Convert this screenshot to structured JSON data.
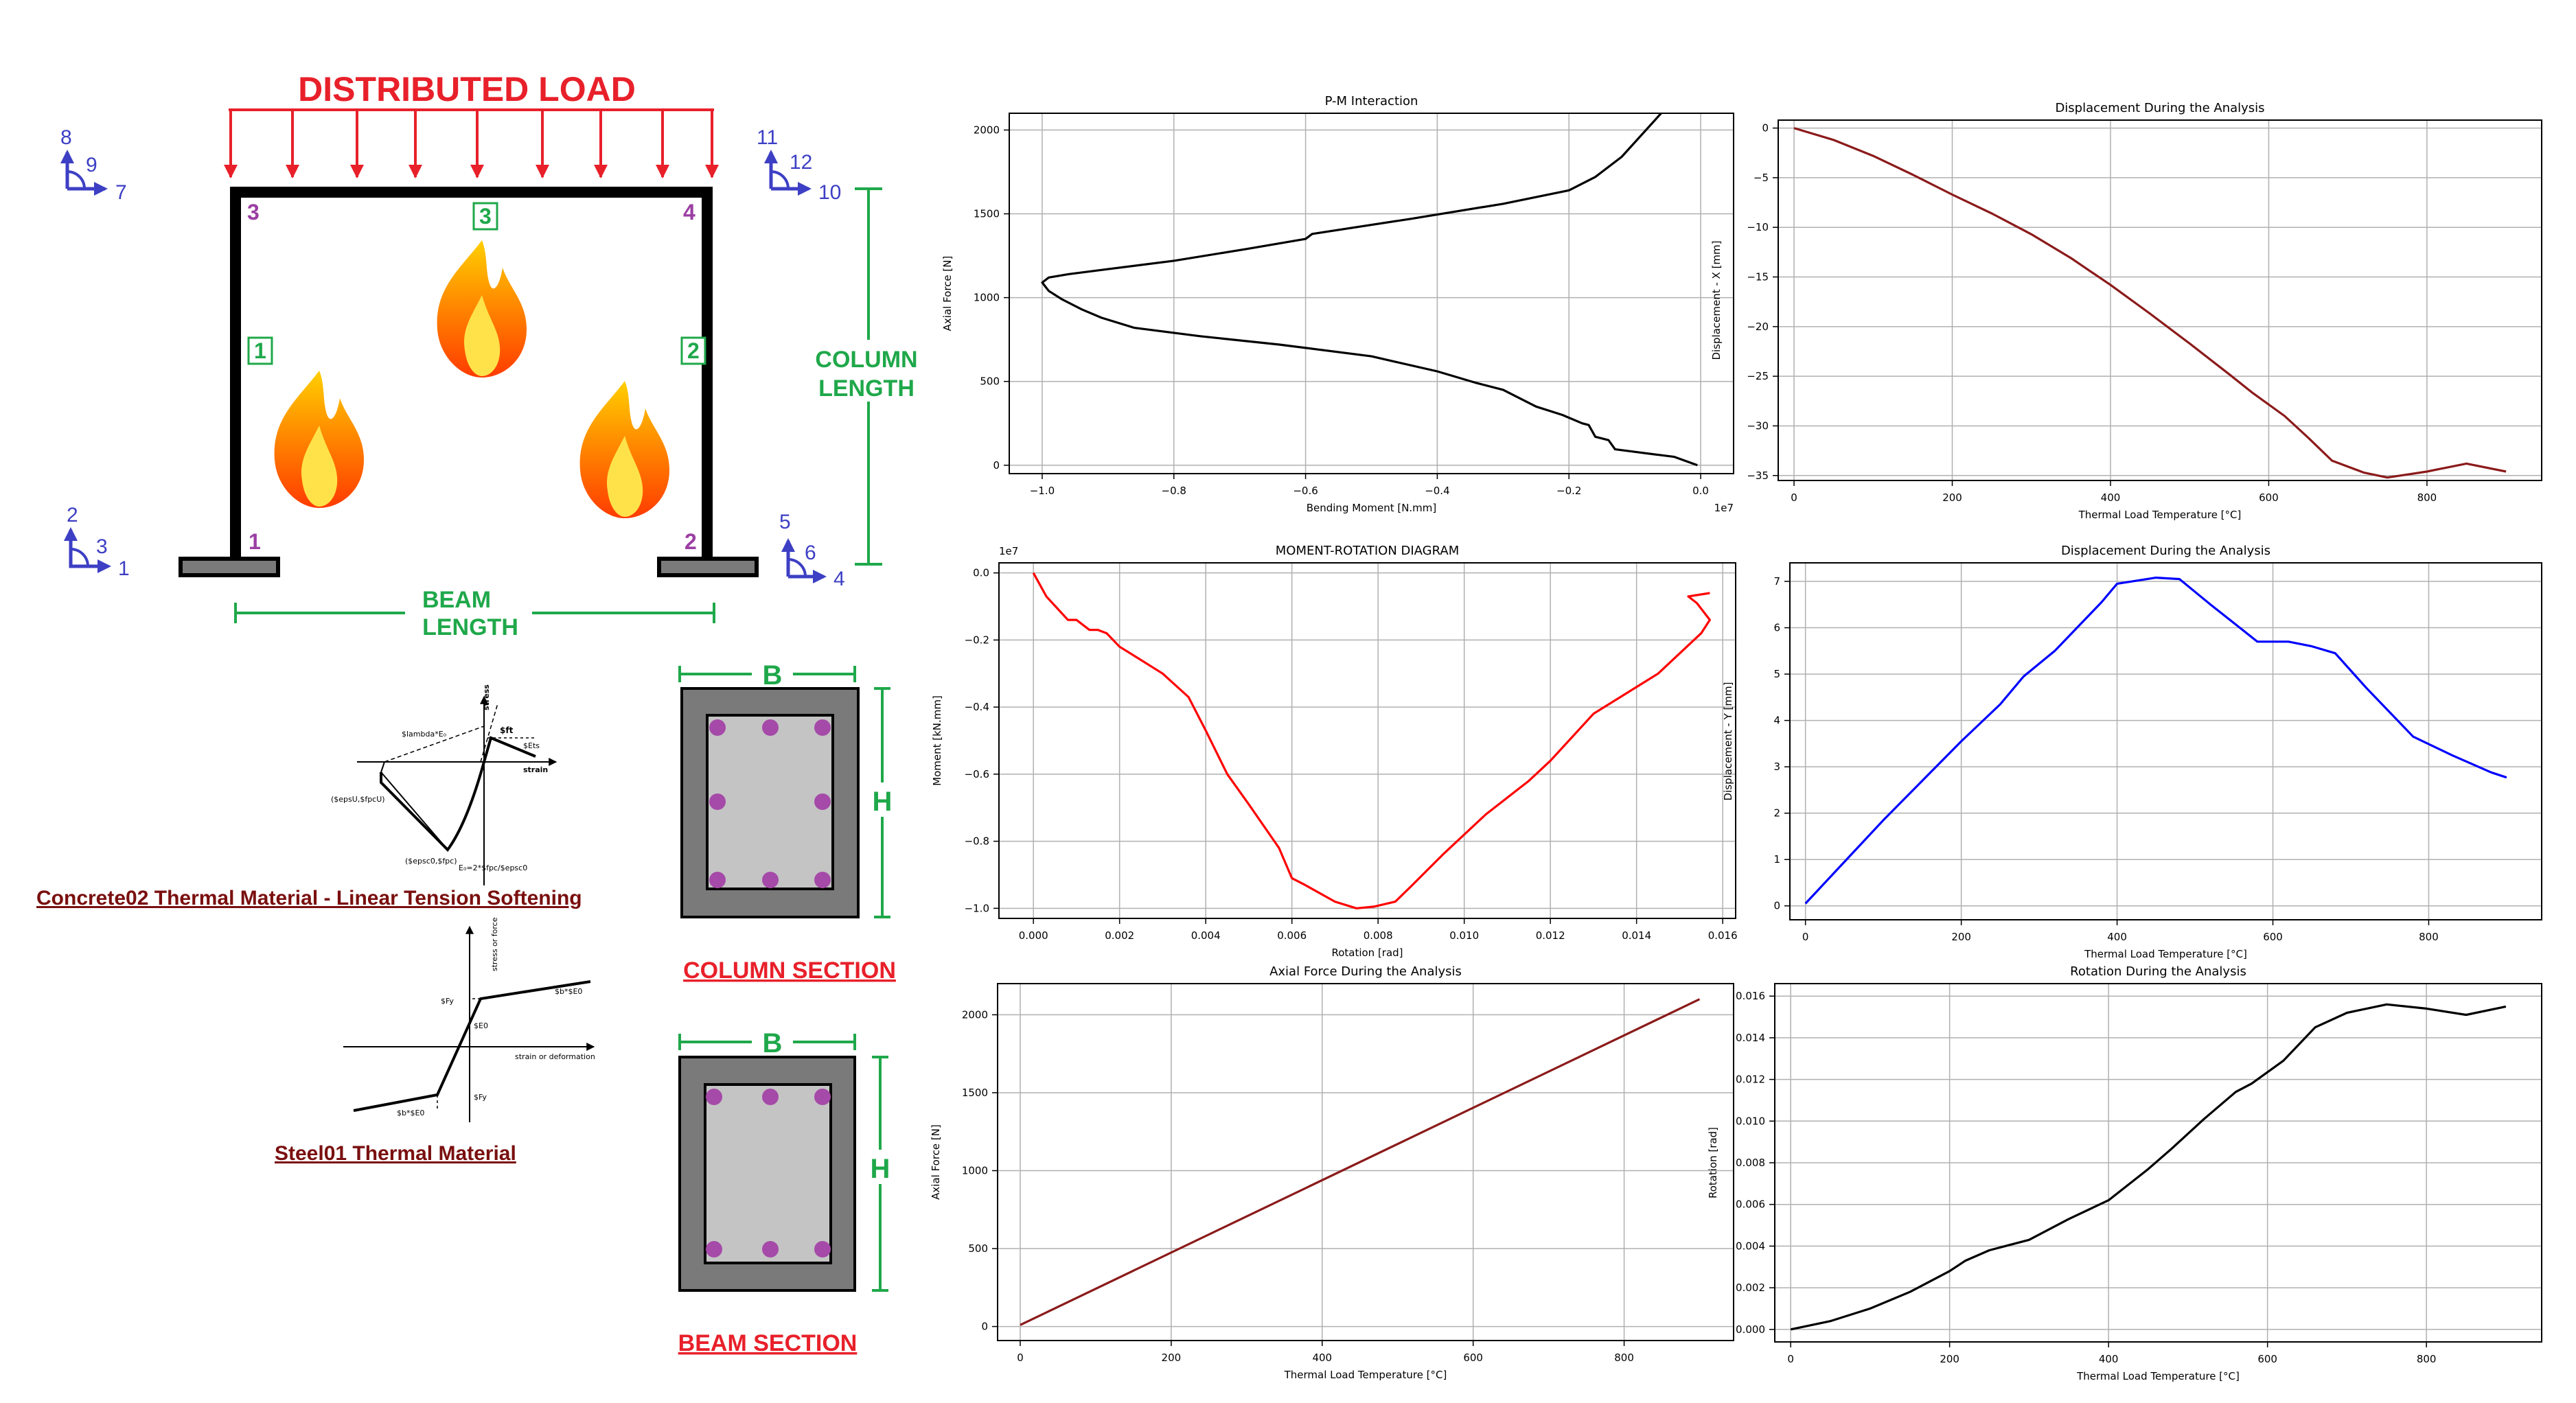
{
  "colors": {
    "red": "#e8202a",
    "blue": "#3d3fc4",
    "green": "#1fa84a",
    "purple": "#9b3fa3",
    "maroon": "#7a0f0f",
    "frame": "#000000",
    "rebar": "#a54aa8",
    "section_outer": "#7a7a7a",
    "section_core": "#c4c4c4"
  },
  "frame_diagram": {
    "load_label": "DISTRIBUTED LOAD",
    "node_labels": [
      "1",
      "2",
      "3",
      "4"
    ],
    "element_labels": [
      "1",
      "2",
      "3"
    ],
    "dof_labels": {
      "n1": [
        "1",
        "2",
        "3"
      ],
      "n2": [
        "4",
        "5",
        "6"
      ],
      "n3": [
        "7",
        "8",
        "9"
      ],
      "n4": [
        "10",
        "11",
        "12"
      ]
    },
    "column_length_label": [
      "COLUMN",
      "LENGTH"
    ],
    "beam_length_label": [
      "BEAM",
      "LENGTH"
    ],
    "fire_icons": [
      "fire-icon",
      "fire-icon",
      "fire-icon"
    ]
  },
  "materials": {
    "concrete": {
      "title": "Concrete02 Thermal Material - Linear Tension Softening",
      "labels": [
        "stress",
        "strain",
        "$lambda*E₀",
        "$ft",
        "$Ets",
        "($epsU,$fpcU)",
        "($epsc0,$fpc)",
        "E₀=2*$fpc/$epsc0"
      ]
    },
    "steel": {
      "title": "Steel01 Thermal Material",
      "labels": [
        "stress or force",
        "strain or deformation",
        "$Fy",
        "$E0",
        "$b*$E0",
        "$Fy",
        "$b*$E0"
      ]
    }
  },
  "sections": {
    "column": {
      "title": "COLUMN SECTION",
      "b_label": "B",
      "h_label": "H"
    },
    "beam": {
      "title": "BEAM SECTION",
      "b_label": "B",
      "h_label": "H"
    }
  },
  "chart_data": [
    {
      "id": "pm",
      "type": "line",
      "title": "P-M Interaction",
      "xlabel": "Bending Moment [N.mm]",
      "ylabel": "Axial Force [N]",
      "x_offset_label": "1e7",
      "xlim": [
        -1.05,
        0.05
      ],
      "ylim": [
        -50,
        2100
      ],
      "xticks": [
        -1.0,
        -0.8,
        -0.6,
        -0.4,
        -0.2,
        0.0
      ],
      "xtick_labels": [
        "−1.0",
        "−0.8",
        "−0.6",
        "−0.4",
        "−0.2",
        "0.0"
      ],
      "yticks": [
        0,
        500,
        1000,
        1500,
        2000
      ],
      "ytick_labels": [
        "0",
        "500",
        "1000",
        "1500",
        "2000"
      ],
      "color": "#000000",
      "x": [
        -0.005,
        -0.04,
        -0.13,
        -0.14,
        -0.16,
        -0.17,
        -0.18,
        -0.21,
        -0.25,
        -0.3,
        -0.34,
        -0.4,
        -0.5,
        -0.58,
        -0.64,
        -0.76,
        -0.86,
        -0.91,
        -0.94,
        -0.97,
        -0.99,
        -1.0,
        -0.99,
        -0.96,
        -0.9,
        -0.8,
        -0.69,
        -0.6,
        -0.59,
        -0.44,
        -0.3,
        -0.2,
        -0.16,
        -0.12,
        -0.06
      ],
      "y": [
        0,
        50,
        95,
        150,
        170,
        240,
        250,
        300,
        350,
        450,
        490,
        560,
        650,
        690,
        720,
        770,
        820,
        880,
        930,
        990,
        1040,
        1090,
        1120,
        1140,
        1170,
        1220,
        1290,
        1350,
        1380,
        1470,
        1560,
        1640,
        1720,
        1840,
        2100
      ]
    },
    {
      "id": "disp_x",
      "type": "line",
      "title": "Displacement During the Analysis",
      "xlabel": "Thermal Load Temperature [°C]",
      "ylabel": "Displacement - X [mm]",
      "xlim": [
        -20,
        945
      ],
      "ylim": [
        -35.5,
        0.8
      ],
      "xticks": [
        0,
        200,
        400,
        600,
        800
      ],
      "xtick_labels": [
        "0",
        "200",
        "400",
        "600",
        "800"
      ],
      "yticks": [
        0,
        -5,
        -10,
        -15,
        -20,
        -25,
        -30,
        -35
      ],
      "ytick_labels": [
        "0",
        "−5",
        "−10",
        "−15",
        "−20",
        "−25",
        "−30",
        "−35"
      ],
      "color": "#8b1a1a",
      "x": [
        0,
        50,
        100,
        150,
        200,
        250,
        300,
        350,
        400,
        450,
        500,
        550,
        580,
        620,
        650,
        680,
        720,
        750,
        800,
        850,
        900
      ],
      "y": [
        0,
        -1.2,
        -2.8,
        -4.7,
        -6.7,
        -8.6,
        -10.7,
        -13.1,
        -15.8,
        -18.7,
        -21.7,
        -24.8,
        -26.7,
        -29.0,
        -31.2,
        -33.5,
        -34.7,
        -35.2,
        -34.6,
        -33.8,
        -34.6
      ]
    },
    {
      "id": "moment_rotation",
      "type": "line",
      "title": "MOMENT-ROTATION DIAGRAM",
      "xlabel": "Rotation [rad]",
      "ylabel": "Moment [kN.mm]",
      "y_offset_label": "1e7",
      "xlim": [
        -0.0008,
        0.0163
      ],
      "ylim": [
        -1.03,
        0.03
      ],
      "xticks": [
        0.0,
        0.002,
        0.004,
        0.006,
        0.008,
        0.01,
        0.012,
        0.014,
        0.016
      ],
      "xtick_labels": [
        "0.000",
        "0.002",
        "0.004",
        "0.006",
        "0.008",
        "0.010",
        "0.012",
        "0.014",
        "0.016"
      ],
      "yticks": [
        0.0,
        -0.2,
        -0.4,
        -0.6,
        -0.8,
        -1.0
      ],
      "ytick_labels": [
        "0.0",
        "−0.2",
        "−0.4",
        "−0.6",
        "−0.8",
        "−1.0"
      ],
      "color": "#ff0000",
      "x": [
        0.0,
        0.0003,
        0.0008,
        0.001,
        0.0013,
        0.0015,
        0.0017,
        0.002,
        0.0025,
        0.003,
        0.0036,
        0.004,
        0.0045,
        0.005,
        0.0057,
        0.006,
        0.0063,
        0.007,
        0.0075,
        0.0079,
        0.0084,
        0.0088,
        0.0095,
        0.0105,
        0.0115,
        0.012,
        0.013,
        0.0145,
        0.0155,
        0.0157,
        0.0154,
        0.0152,
        0.0157
      ],
      "y": [
        0.0,
        -0.07,
        -0.14,
        -0.14,
        -0.17,
        -0.17,
        -0.18,
        -0.22,
        -0.26,
        -0.3,
        -0.37,
        -0.47,
        -0.6,
        -0.69,
        -0.82,
        -0.91,
        -0.93,
        -0.98,
        -1.0,
        -0.995,
        -0.98,
        -0.93,
        -0.84,
        -0.72,
        -0.62,
        -0.56,
        -0.42,
        -0.3,
        -0.18,
        -0.14,
        -0.09,
        -0.07,
        -0.06
      ]
    },
    {
      "id": "disp_y",
      "type": "line",
      "title": "Displacement During the Analysis",
      "xlabel": "Thermal Load Temperature [°C]",
      "ylabel": "Displacement - Y [mm]",
      "xlim": [
        -20,
        945
      ],
      "ylim": [
        -0.3,
        7.4
      ],
      "xticks": [
        0,
        200,
        400,
        600,
        800
      ],
      "xtick_labels": [
        "0",
        "200",
        "400",
        "600",
        "800"
      ],
      "yticks": [
        0,
        1,
        2,
        3,
        4,
        5,
        6,
        7
      ],
      "ytick_labels": [
        "0",
        "1",
        "2",
        "3",
        "4",
        "5",
        "6",
        "7"
      ],
      "color": "#0000ff",
      "x": [
        0,
        50,
        100,
        150,
        200,
        250,
        280,
        320,
        360,
        380,
        400,
        450,
        480,
        520,
        550,
        580,
        620,
        650,
        680,
        720,
        780,
        830,
        880,
        900
      ],
      "y": [
        0.05,
        0.95,
        1.85,
        2.7,
        3.55,
        4.35,
        4.95,
        5.5,
        6.2,
        6.55,
        6.95,
        7.08,
        7.05,
        6.5,
        6.1,
        5.7,
        5.7,
        5.6,
        5.45,
        4.7,
        3.65,
        3.25,
        2.88,
        2.77
      ]
    },
    {
      "id": "axial",
      "type": "line",
      "title": "Axial Force During the Analysis",
      "xlabel": "Thermal Load Temperature [°C]",
      "ylabel": "Axial Force [N]",
      "xlim": [
        -30,
        945
      ],
      "ylim": [
        -90,
        2200
      ],
      "xticks": [
        0,
        200,
        400,
        600,
        800
      ],
      "xtick_labels": [
        "0",
        "200",
        "400",
        "600",
        "800"
      ],
      "yticks": [
        0,
        500,
        1000,
        1500,
        2000
      ],
      "ytick_labels": [
        "0",
        "500",
        "1000",
        "1500",
        "2000"
      ],
      "color": "#8b1a1a",
      "x": [
        0,
        900
      ],
      "y": [
        10,
        2100
      ]
    },
    {
      "id": "rotation",
      "type": "line",
      "title": "Rotation During the Analysis",
      "xlabel": "Thermal Load Temperature [°C]",
      "ylabel": "Rotation [rad]",
      "xlim": [
        -20,
        945
      ],
      "ylim": [
        -0.0006,
        0.0166
      ],
      "xticks": [
        0,
        200,
        400,
        600,
        800
      ],
      "xtick_labels": [
        "0",
        "200",
        "400",
        "600",
        "800"
      ],
      "yticks": [
        0.0,
        0.002,
        0.004,
        0.006,
        0.008,
        0.01,
        0.012,
        0.014,
        0.016
      ],
      "ytick_labels": [
        "0.000",
        "0.002",
        "0.004",
        "0.006",
        "0.008",
        "0.010",
        "0.012",
        "0.014",
        "0.016"
      ],
      "color": "#000000",
      "x": [
        0,
        50,
        100,
        150,
        200,
        220,
        250,
        300,
        350,
        400,
        450,
        480,
        520,
        560,
        580,
        620,
        660,
        700,
        750,
        800,
        850,
        900
      ],
      "y": [
        0.0,
        0.0004,
        0.001,
        0.0018,
        0.0028,
        0.0033,
        0.0038,
        0.0043,
        0.0053,
        0.0062,
        0.0077,
        0.0087,
        0.0101,
        0.0114,
        0.0118,
        0.0129,
        0.0145,
        0.0152,
        0.0156,
        0.0154,
        0.0151,
        0.0155
      ]
    }
  ]
}
